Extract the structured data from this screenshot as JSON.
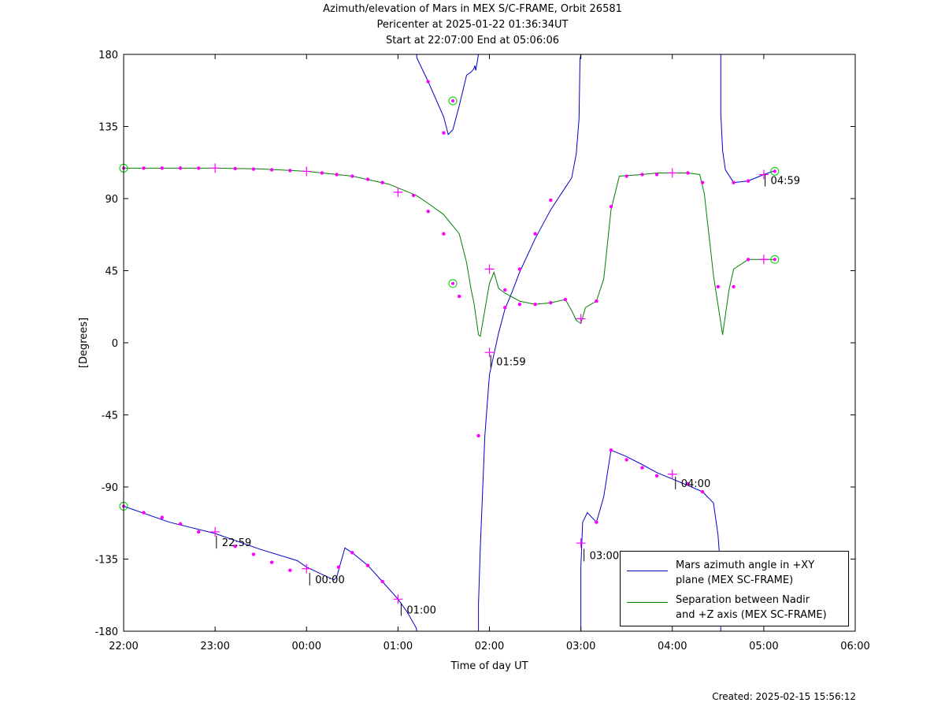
{
  "header": {
    "title": "Azimuth/elevation of Mars in MEX S/C-FRAME,  Orbit 26581",
    "subtitle1": "Pericenter at 2025-01-22 01:36:34UT",
    "subtitle2": "Start at 22:07:00 End at 05:06:06"
  },
  "footer": {
    "created": "Created: 2025-02-15 15:56:12"
  },
  "legend": {
    "blue_line1": "Mars azimuth angle in +XY",
    "blue_line2": "plane (MEX SC-FRAME)",
    "green_line1": "Separation between Nadir",
    "green_line2": "and +Z axis (MEX SC-FRAME)"
  },
  "chart_data": {
    "type": "line",
    "title": "Azimuth/elevation of Mars in MEX S/C-FRAME,  Orbit 26581",
    "xlabel": "Time of day UT",
    "ylabel": "[Degrees]",
    "xlim": [
      0,
      8
    ],
    "ylim": [
      -180,
      180
    ],
    "x_ticks": [
      0,
      1,
      2,
      3,
      4,
      5,
      6,
      7,
      8
    ],
    "x_tick_labels": [
      "22:00",
      "23:00",
      "00:00",
      "01:00",
      "02:00",
      "03:00",
      "04:00",
      "05:00",
      "06:00"
    ],
    "y_ticks": [
      -180,
      -135,
      -90,
      -45,
      0,
      45,
      90,
      135,
      180
    ],
    "y_tick_labels": [
      "-180",
      "-135",
      "-90",
      "-45",
      "0",
      "45",
      "90",
      "135",
      "180"
    ],
    "x_unit_note": "hours since 22:00 UT",
    "grid": false,
    "legend_position": "bottom-right",
    "colors": {
      "azimuth": "#0000cc",
      "separation": "#008000",
      "markers": "#ff00ff",
      "endpoints": "#00cc00"
    },
    "series": [
      {
        "name": "Mars azimuth angle in +XY plane (MEX SC-FRAME)",
        "color": "#0000cc",
        "points": [
          [
            0.0,
            -102
          ],
          [
            0.5,
            -112
          ],
          [
            1.0,
            -119
          ],
          [
            1.5,
            -129
          ],
          [
            1.9,
            -136
          ],
          [
            2.0,
            -140
          ],
          [
            2.3,
            -148
          ],
          [
            2.33,
            -146
          ],
          [
            2.42,
            -128
          ],
          [
            2.5,
            -131
          ],
          [
            2.67,
            -139
          ],
          [
            2.83,
            -149
          ],
          [
            3.0,
            -160
          ],
          [
            3.1,
            -168
          ],
          [
            3.2,
            -178
          ],
          [
            3.205,
            178
          ],
          [
            3.33,
            163
          ],
          [
            3.5,
            141
          ],
          [
            3.55,
            130
          ],
          [
            3.6,
            133
          ],
          [
            3.67,
            148
          ],
          [
            3.75,
            167
          ],
          [
            3.8,
            169
          ],
          [
            3.83,
            171
          ],
          [
            3.84,
            173
          ],
          [
            3.85,
            170
          ],
          [
            3.88,
            -163
          ],
          [
            3.9,
            -128
          ],
          [
            3.95,
            -58
          ],
          [
            4.0,
            -20
          ],
          [
            4.05,
            -7
          ],
          [
            4.1,
            6
          ],
          [
            4.17,
            21
          ],
          [
            4.25,
            32
          ],
          [
            4.33,
            44
          ],
          [
            4.5,
            65
          ],
          [
            4.67,
            83
          ],
          [
            4.83,
            97
          ],
          [
            4.9,
            103
          ],
          [
            4.95,
            118
          ],
          [
            4.98,
            140
          ],
          [
            4.99,
            177
          ],
          [
            5.0,
            -140
          ],
          [
            5.02,
            -112
          ],
          [
            5.07,
            -106
          ],
          [
            5.17,
            -112
          ],
          [
            5.25,
            -96
          ],
          [
            5.33,
            -67
          ],
          [
            5.5,
            -71
          ],
          [
            5.67,
            -76
          ],
          [
            5.83,
            -81
          ],
          [
            6.0,
            -85
          ],
          [
            6.17,
            -89
          ],
          [
            6.33,
            -93
          ],
          [
            6.45,
            -100
          ],
          [
            6.5,
            -120
          ],
          [
            6.52,
            -136
          ],
          [
            6.53,
            143
          ],
          [
            6.55,
            120
          ],
          [
            6.58,
            108
          ],
          [
            6.67,
            100
          ],
          [
            6.83,
            101
          ],
          [
            7.0,
            105
          ],
          [
            7.1,
            107
          ],
          [
            7.12,
            107
          ]
        ],
        "markers": [
          [
            0.22,
            -106
          ],
          [
            0.42,
            -109
          ],
          [
            0.62,
            -113
          ],
          [
            0.82,
            -118
          ],
          [
            1.22,
            -127
          ],
          [
            1.42,
            -132
          ],
          [
            1.62,
            -137
          ],
          [
            1.82,
            -142
          ],
          [
            2.35,
            -140
          ],
          [
            2.5,
            -131
          ],
          [
            2.67,
            -139
          ],
          [
            2.83,
            -149
          ],
          [
            3.33,
            163
          ],
          [
            3.5,
            131
          ],
          [
            3.88,
            -58
          ],
          [
            4.17,
            22
          ],
          [
            4.33,
            46
          ],
          [
            4.5,
            68
          ],
          [
            4.67,
            89
          ],
          [
            5.17,
            -112
          ],
          [
            5.33,
            -67
          ],
          [
            5.5,
            -73
          ],
          [
            5.67,
            -78
          ],
          [
            5.83,
            -83
          ],
          [
            6.17,
            -88
          ],
          [
            6.33,
            -93
          ],
          [
            6.67,
            100
          ],
          [
            6.83,
            101
          ]
        ],
        "time_markers": [
          [
            1.0,
            -118
          ],
          [
            2.0,
            -141
          ],
          [
            3.0,
            -160
          ],
          [
            4.0,
            -6
          ],
          [
            5.0,
            -125
          ],
          [
            6.0,
            -82
          ],
          [
            7.0,
            105
          ]
        ],
        "endpoints": [
          [
            0.0,
            -102
          ],
          [
            3.6,
            151
          ],
          [
            7.12,
            107
          ]
        ]
      },
      {
        "name": "Separation between Nadir and +Z axis (MEX SC-FRAME)",
        "color": "#008000",
        "points": [
          [
            0.0,
            109
          ],
          [
            1.0,
            109
          ],
          [
            1.5,
            108.5
          ],
          [
            2.0,
            107
          ],
          [
            2.5,
            104
          ],
          [
            2.9,
            99
          ],
          [
            3.2,
            92
          ],
          [
            3.33,
            87
          ],
          [
            3.5,
            80
          ],
          [
            3.67,
            68
          ],
          [
            3.75,
            50
          ],
          [
            3.8,
            33
          ],
          [
            3.83,
            25
          ],
          [
            3.88,
            5
          ],
          [
            3.9,
            4
          ],
          [
            4.0,
            37
          ],
          [
            4.05,
            44
          ],
          [
            4.1,
            34
          ],
          [
            4.17,
            31
          ],
          [
            4.33,
            26
          ],
          [
            4.5,
            24
          ],
          [
            4.67,
            25
          ],
          [
            4.83,
            27
          ],
          [
            4.9,
            20
          ],
          [
            4.95,
            14
          ],
          [
            5.0,
            12
          ],
          [
            5.05,
            22
          ],
          [
            5.17,
            26
          ],
          [
            5.25,
            40
          ],
          [
            5.33,
            83
          ],
          [
            5.42,
            104
          ],
          [
            5.67,
            105
          ],
          [
            5.83,
            106
          ],
          [
            6.0,
            106
          ],
          [
            6.17,
            106
          ],
          [
            6.3,
            105
          ],
          [
            6.35,
            93
          ],
          [
            6.45,
            42
          ],
          [
            6.55,
            5
          ],
          [
            6.62,
            33
          ],
          [
            6.67,
            46
          ],
          [
            6.83,
            52
          ],
          [
            7.0,
            52
          ],
          [
            7.12,
            52
          ]
        ],
        "markers": [
          [
            0.22,
            109
          ],
          [
            0.42,
            109
          ],
          [
            0.62,
            109
          ],
          [
            0.82,
            109
          ],
          [
            1.22,
            108.7
          ],
          [
            1.42,
            108.4
          ],
          [
            1.62,
            108
          ],
          [
            1.82,
            107.5
          ],
          [
            2.17,
            106
          ],
          [
            2.33,
            105
          ],
          [
            2.5,
            104
          ],
          [
            2.67,
            102
          ],
          [
            2.83,
            100
          ],
          [
            3.17,
            92
          ],
          [
            3.33,
            82
          ],
          [
            3.5,
            68
          ],
          [
            3.67,
            29
          ],
          [
            4.17,
            33
          ],
          [
            4.33,
            24
          ],
          [
            4.5,
            24
          ],
          [
            4.67,
            25
          ],
          [
            4.83,
            27
          ],
          [
            5.17,
            26
          ],
          [
            5.33,
            85
          ],
          [
            5.5,
            104
          ],
          [
            5.67,
            105
          ],
          [
            5.83,
            105
          ],
          [
            6.17,
            106
          ],
          [
            6.33,
            100
          ],
          [
            6.5,
            35
          ],
          [
            6.67,
            35
          ],
          [
            6.83,
            52
          ]
        ],
        "time_markers": [
          [
            1.0,
            109
          ],
          [
            2.0,
            107
          ],
          [
            3.0,
            94
          ],
          [
            4.0,
            46
          ],
          [
            5.0,
            15
          ],
          [
            6.0,
            106
          ],
          [
            7.0,
            52
          ]
        ],
        "endpoints": [
          [
            0.0,
            109
          ],
          [
            3.6,
            37
          ],
          [
            7.12,
            52
          ]
        ]
      }
    ],
    "annotations": [
      {
        "label": "22:59",
        "x": 0.98,
        "y": -124
      },
      {
        "label": "00:00",
        "x": 2.0,
        "y": -147
      },
      {
        "label": "01:00",
        "x": 3.0,
        "y": -166
      },
      {
        "label": "01:59",
        "x": 3.98,
        "y": -11
      },
      {
        "label": "03:00",
        "x": 5.0,
        "y": -132
      },
      {
        "label": "04:00",
        "x": 6.0,
        "y": -87
      },
      {
        "label": "04:59",
        "x": 6.98,
        "y": 102
      }
    ]
  }
}
